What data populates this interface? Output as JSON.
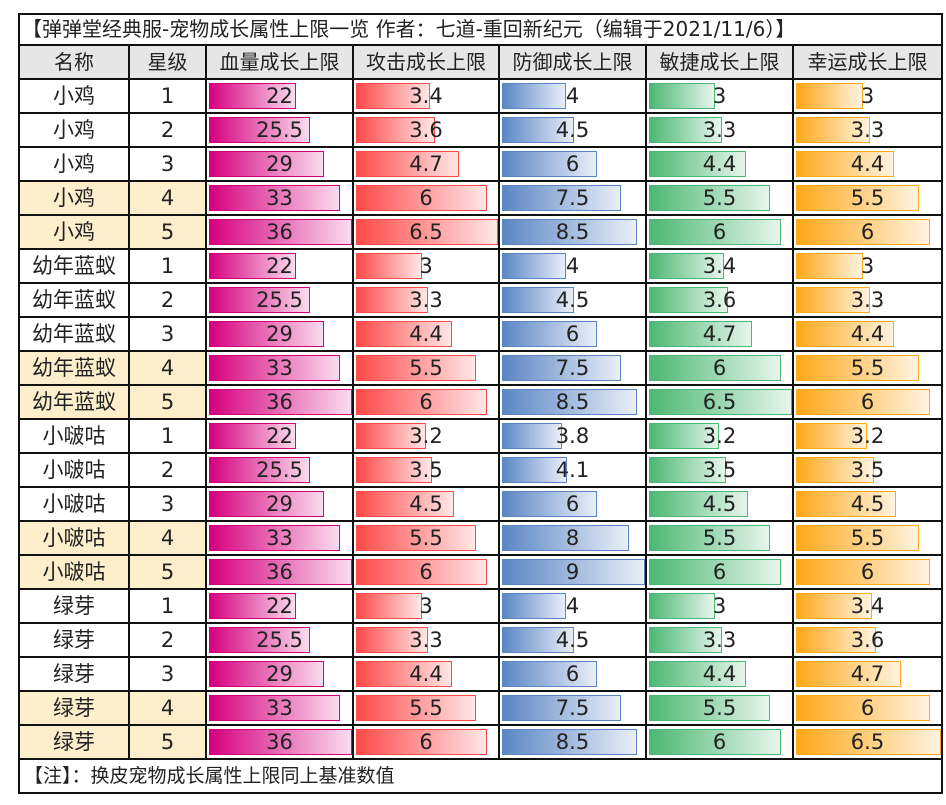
{
  "title": "【弹弹堂经典服-宠物成长属性上限一览 作者：七道-重回新纪元（编辑于2021/11/6）】",
  "headers": [
    "名称",
    "星级",
    "血量成长上限",
    "攻击成长上限",
    "防御成长上限",
    "敏捷成长上限",
    "幸运成长上限"
  ],
  "bar_colors": [
    "#d6007f",
    "#ff4a4a",
    "#5b86c4",
    "#4cb873",
    "#ffa81a"
  ],
  "bar_max": [
    36,
    6.5,
    9,
    6.5,
    6.5
  ],
  "rows": [
    [
      "小鸡",
      "1",
      "22",
      "3.4",
      "4",
      "3",
      "3"
    ],
    [
      "小鸡",
      "2",
      "25.5",
      "3.6",
      "4.5",
      "3.3",
      "3.3"
    ],
    [
      "小鸡",
      "3",
      "29",
      "4.7",
      "6",
      "4.4",
      "4.4"
    ],
    [
      "小鸡",
      "4",
      "33",
      "6",
      "7.5",
      "5.5",
      "5.5"
    ],
    [
      "小鸡",
      "5",
      "36",
      "6.5",
      "8.5",
      "6",
      "6"
    ],
    [
      "幼年蓝蚁",
      "1",
      "22",
      "3",
      "4",
      "3.4",
      "3"
    ],
    [
      "幼年蓝蚁",
      "2",
      "25.5",
      "3.3",
      "4.5",
      "3.6",
      "3.3"
    ],
    [
      "幼年蓝蚁",
      "3",
      "29",
      "4.4",
      "6",
      "4.7",
      "4.4"
    ],
    [
      "幼年蓝蚁",
      "4",
      "33",
      "5.5",
      "7.5",
      "6",
      "5.5"
    ],
    [
      "幼年蓝蚁",
      "5",
      "36",
      "6",
      "8.5",
      "6.5",
      "6"
    ],
    [
      "小啵咕",
      "1",
      "22",
      "3.2",
      "3.8",
      "3.2",
      "3.2"
    ],
    [
      "小啵咕",
      "2",
      "25.5",
      "3.5",
      "4.1",
      "3.5",
      "3.5"
    ],
    [
      "小啵咕",
      "3",
      "29",
      "4.5",
      "6",
      "4.5",
      "4.5"
    ],
    [
      "小啵咕",
      "4",
      "33",
      "5.5",
      "8",
      "5.5",
      "5.5"
    ],
    [
      "小啵咕",
      "5",
      "36",
      "6",
      "9",
      "6",
      "6"
    ],
    [
      "绿芽",
      "1",
      "22",
      "3",
      "4",
      "3",
      "3.4"
    ],
    [
      "绿芽",
      "2",
      "25.5",
      "3.3",
      "4.5",
      "3.3",
      "3.6"
    ],
    [
      "绿芽",
      "3",
      "29",
      "4.4",
      "6",
      "4.4",
      "4.7"
    ],
    [
      "绿芽",
      "4",
      "33",
      "5.5",
      "7.5",
      "5.5",
      "6"
    ],
    [
      "绿芽",
      "5",
      "36",
      "6",
      "8.5",
      "6",
      "6.5"
    ]
  ],
  "highlight_stars": [
    "4",
    "5"
  ],
  "highlight_color": "#fdefcc",
  "note": "【注】：换皮宠物成长属性上限同上基准数值"
}
